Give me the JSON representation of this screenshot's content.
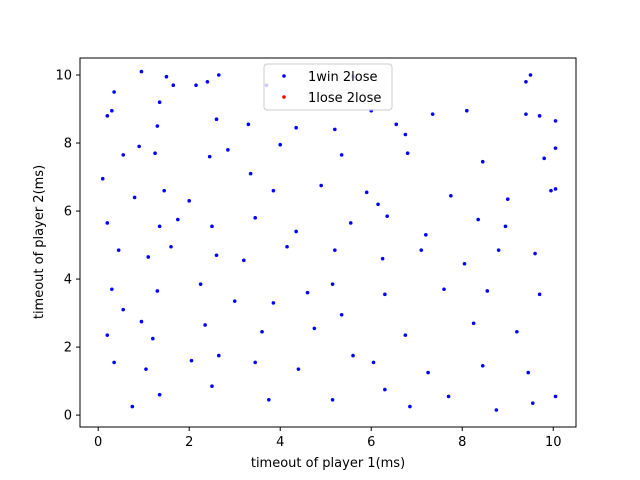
{
  "chart_data": {
    "type": "scatter",
    "title": "",
    "xlabel": "timeout of player 1(ms)",
    "ylabel": "timeout of player 2(ms)",
    "xlim": [
      -0.4,
      10.5
    ],
    "ylim": [
      -0.35,
      10.5
    ],
    "xticks": [
      0,
      2,
      4,
      6,
      8,
      10
    ],
    "yticks": [
      0,
      2,
      4,
      6,
      8,
      10
    ],
    "grid": false,
    "legend_position": "upper center",
    "series": [
      {
        "name": "1win 2lose",
        "color": "#0000ff",
        "marker": "dot",
        "points": [
          [
            0.95,
            10.1
          ],
          [
            1.5,
            9.95
          ],
          [
            1.65,
            9.7
          ],
          [
            2.65,
            10.0
          ],
          [
            0.35,
            9.5
          ],
          [
            1.35,
            9.2
          ],
          [
            2.15,
            9.7
          ],
          [
            2.4,
            9.8
          ],
          [
            3.7,
            9.7
          ],
          [
            5.6,
            9.95
          ],
          [
            9.5,
            10.0
          ],
          [
            9.4,
            9.8
          ],
          [
            0.3,
            8.95
          ],
          [
            0.2,
            8.8
          ],
          [
            1.3,
            8.5
          ],
          [
            2.6,
            8.7
          ],
          [
            3.3,
            8.55
          ],
          [
            4.35,
            8.45
          ],
          [
            5.2,
            8.4
          ],
          [
            6.0,
            8.95
          ],
          [
            6.55,
            8.55
          ],
          [
            6.75,
            8.25
          ],
          [
            7.35,
            8.85
          ],
          [
            8.1,
            8.95
          ],
          [
            9.4,
            8.85
          ],
          [
            9.7,
            8.8
          ],
          [
            10.05,
            8.65
          ],
          [
            0.55,
            7.65
          ],
          [
            0.9,
            7.9
          ],
          [
            1.25,
            7.7
          ],
          [
            2.45,
            7.6
          ],
          [
            2.85,
            7.8
          ],
          [
            4.0,
            7.95
          ],
          [
            5.35,
            7.65
          ],
          [
            6.8,
            7.7
          ],
          [
            8.45,
            7.45
          ],
          [
            9.8,
            7.55
          ],
          [
            10.05,
            7.85
          ],
          [
            0.1,
            6.95
          ],
          [
            0.8,
            6.4
          ],
          [
            1.45,
            6.6
          ],
          [
            2.0,
            6.3
          ],
          [
            3.35,
            7.1
          ],
          [
            3.85,
            6.6
          ],
          [
            4.9,
            6.75
          ],
          [
            5.9,
            6.55
          ],
          [
            6.15,
            6.2
          ],
          [
            7.75,
            6.45
          ],
          [
            9.0,
            6.35
          ],
          [
            9.95,
            6.6
          ],
          [
            10.05,
            6.65
          ],
          [
            0.2,
            5.65
          ],
          [
            1.35,
            5.55
          ],
          [
            1.75,
            5.75
          ],
          [
            2.5,
            5.55
          ],
          [
            3.45,
            5.8
          ],
          [
            4.35,
            5.4
          ],
          [
            5.55,
            5.65
          ],
          [
            6.35,
            5.85
          ],
          [
            7.2,
            5.3
          ],
          [
            8.35,
            5.75
          ],
          [
            8.95,
            5.55
          ],
          [
            0.45,
            4.85
          ],
          [
            1.1,
            4.65
          ],
          [
            1.6,
            4.95
          ],
          [
            2.6,
            4.7
          ],
          [
            3.2,
            4.55
          ],
          [
            4.15,
            4.95
          ],
          [
            5.2,
            4.85
          ],
          [
            6.25,
            4.6
          ],
          [
            7.1,
            4.85
          ],
          [
            8.05,
            4.45
          ],
          [
            8.8,
            4.85
          ],
          [
            9.6,
            4.75
          ],
          [
            0.3,
            3.7
          ],
          [
            0.55,
            3.1
          ],
          [
            1.3,
            3.65
          ],
          [
            2.25,
            3.85
          ],
          [
            3.0,
            3.35
          ],
          [
            3.85,
            3.3
          ],
          [
            4.6,
            3.6
          ],
          [
            5.15,
            3.85
          ],
          [
            6.3,
            3.55
          ],
          [
            7.6,
            3.7
          ],
          [
            8.55,
            3.65
          ],
          [
            9.7,
            3.55
          ],
          [
            0.2,
            2.35
          ],
          [
            0.95,
            2.75
          ],
          [
            1.2,
            2.25
          ],
          [
            2.35,
            2.65
          ],
          [
            3.6,
            2.45
          ],
          [
            4.75,
            2.55
          ],
          [
            5.35,
            2.95
          ],
          [
            6.75,
            2.35
          ],
          [
            8.25,
            2.7
          ],
          [
            9.2,
            2.45
          ],
          [
            0.35,
            1.55
          ],
          [
            1.05,
            1.35
          ],
          [
            2.05,
            1.6
          ],
          [
            2.65,
            1.75
          ],
          [
            3.45,
            1.55
          ],
          [
            4.4,
            1.35
          ],
          [
            5.6,
            1.75
          ],
          [
            6.05,
            1.55
          ],
          [
            7.25,
            1.25
          ],
          [
            8.45,
            1.45
          ],
          [
            9.45,
            1.25
          ],
          [
            0.75,
            0.25
          ],
          [
            1.35,
            0.6
          ],
          [
            2.5,
            0.85
          ],
          [
            3.75,
            0.45
          ],
          [
            5.15,
            0.45
          ],
          [
            6.3,
            0.75
          ],
          [
            6.85,
            0.25
          ],
          [
            7.7,
            0.55
          ],
          [
            8.75,
            0.15
          ],
          [
            9.55,
            0.35
          ],
          [
            10.05,
            0.55
          ]
        ]
      },
      {
        "name": "1lose 2lose",
        "color": "#ff0000",
        "marker": "dot",
        "points": []
      }
    ]
  }
}
